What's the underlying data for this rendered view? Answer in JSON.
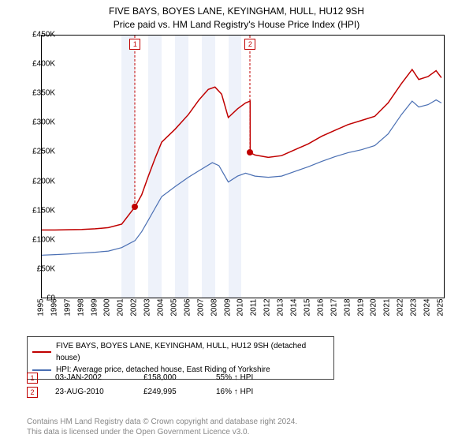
{
  "title": {
    "line1": "FIVE BAYS, BOYES LANE, KEYINGHAM, HULL, HU12 9SH",
    "line2": "Price paid vs. HM Land Registry's House Price Index (HPI)",
    "fontsize": 12,
    "color": "#000000"
  },
  "chart": {
    "type": "line",
    "background_color": "#ffffff",
    "plot_border_color": "#000000",
    "x": {
      "min": 1995,
      "max": 2025.3,
      "ticks": [
        1995,
        1996,
        1997,
        1998,
        1999,
        2000,
        2001,
        2002,
        2003,
        2004,
        2005,
        2006,
        2007,
        2008,
        2009,
        2010,
        2011,
        2012,
        2013,
        2014,
        2015,
        2016,
        2017,
        2018,
        2019,
        2020,
        2021,
        2022,
        2023,
        2024,
        2025
      ],
      "label_fontsize": 10,
      "label_rotation": -90
    },
    "y": {
      "min": 0,
      "max": 450000,
      "ticks": [
        0,
        50000,
        100000,
        150000,
        200000,
        250000,
        300000,
        350000,
        400000,
        450000
      ],
      "tick_labels": [
        "£0",
        "£50K",
        "£100K",
        "£150K",
        "£200K",
        "£250K",
        "£300K",
        "£350K",
        "£400K",
        "£450K"
      ],
      "label_fontsize": 10
    },
    "shaded_bands": {
      "color": "#eef2fa",
      "ranges": [
        [
          2001,
          2002
        ],
        [
          2003,
          2004
        ],
        [
          2005,
          2006
        ],
        [
          2007,
          2008
        ],
        [
          2009,
          2010
        ]
      ]
    },
    "series": [
      {
        "name": "price_paid",
        "label": "FIVE BAYS, BOYES LANE, KEYINGHAM, HULL, HU12 9SH (detached house)",
        "color": "#c00000",
        "line_width": 1.5,
        "xy": [
          [
            1995,
            118000
          ],
          [
            1996,
            118000
          ],
          [
            1997,
            118500
          ],
          [
            1998,
            119000
          ],
          [
            1999,
            120000
          ],
          [
            2000,
            122000
          ],
          [
            2001,
            128000
          ],
          [
            2002.01,
            158000
          ],
          [
            2002.5,
            178000
          ],
          [
            2003,
            210000
          ],
          [
            2003.5,
            240000
          ],
          [
            2004,
            268000
          ],
          [
            2005,
            290000
          ],
          [
            2006,
            315000
          ],
          [
            2006.8,
            340000
          ],
          [
            2007.5,
            358000
          ],
          [
            2008,
            362000
          ],
          [
            2008.5,
            350000
          ],
          [
            2009,
            310000
          ],
          [
            2009.7,
            325000
          ],
          [
            2010.3,
            335000
          ],
          [
            2010.64,
            338000
          ],
          [
            2010.65,
            249995
          ],
          [
            2011,
            246000
          ],
          [
            2012,
            242000
          ],
          [
            2013,
            245000
          ],
          [
            2014,
            255000
          ],
          [
            2015,
            265000
          ],
          [
            2016,
            278000
          ],
          [
            2017,
            288000
          ],
          [
            2018,
            298000
          ],
          [
            2019,
            305000
          ],
          [
            2020,
            312000
          ],
          [
            2021,
            335000
          ],
          [
            2022,
            368000
          ],
          [
            2022.8,
            392000
          ],
          [
            2023.3,
            375000
          ],
          [
            2024,
            380000
          ],
          [
            2024.6,
            390000
          ],
          [
            2025,
            378000
          ]
        ]
      },
      {
        "name": "hpi",
        "label": "HPI: Average price, detached house, East Riding of Yorkshire",
        "color": "#4a6fb3",
        "line_width": 1.2,
        "xy": [
          [
            1995,
            75000
          ],
          [
            1996,
            76000
          ],
          [
            1997,
            77000
          ],
          [
            1998,
            78500
          ],
          [
            1999,
            80000
          ],
          [
            2000,
            82000
          ],
          [
            2001,
            88000
          ],
          [
            2002,
            100000
          ],
          [
            2002.5,
            115000
          ],
          [
            2003,
            135000
          ],
          [
            2003.5,
            155000
          ],
          [
            2004,
            175000
          ],
          [
            2005,
            192000
          ],
          [
            2006,
            208000
          ],
          [
            2007,
            222000
          ],
          [
            2007.8,
            233000
          ],
          [
            2008.3,
            228000
          ],
          [
            2009,
            200000
          ],
          [
            2009.7,
            210000
          ],
          [
            2010.3,
            215000
          ],
          [
            2011,
            210000
          ],
          [
            2012,
            208000
          ],
          [
            2013,
            210000
          ],
          [
            2014,
            218000
          ],
          [
            2015,
            226000
          ],
          [
            2016,
            235000
          ],
          [
            2017,
            243000
          ],
          [
            2018,
            250000
          ],
          [
            2019,
            255000
          ],
          [
            2020,
            262000
          ],
          [
            2021,
            282000
          ],
          [
            2022,
            315000
          ],
          [
            2022.8,
            338000
          ],
          [
            2023.3,
            328000
          ],
          [
            2024,
            332000
          ],
          [
            2024.6,
            340000
          ],
          [
            2025,
            335000
          ]
        ]
      }
    ],
    "sale_markers": [
      {
        "num": "1",
        "x": 2002.01,
        "y": 158000,
        "color": "#c00000"
      },
      {
        "num": "2",
        "x": 2010.65,
        "y": 249995,
        "color": "#c00000"
      }
    ]
  },
  "legend": {
    "border_color": "#444444",
    "fontsize": 10
  },
  "sales_table": {
    "rows": [
      {
        "marker": "1",
        "marker_color": "#c00000",
        "date": "03-JAN-2002",
        "price": "£158,000",
        "pct_vs_hpi": "55% ↑ HPI"
      },
      {
        "marker": "2",
        "marker_color": "#c00000",
        "date": "23-AUG-2010",
        "price": "£249,995",
        "pct_vs_hpi": "16% ↑ HPI"
      }
    ],
    "fontsize": 10
  },
  "footer": {
    "line1": "Contains HM Land Registry data © Crown copyright and database right 2024.",
    "line2": "This data is licensed under the Open Government Licence v3.0.",
    "color": "#888888",
    "fontsize": 10
  }
}
